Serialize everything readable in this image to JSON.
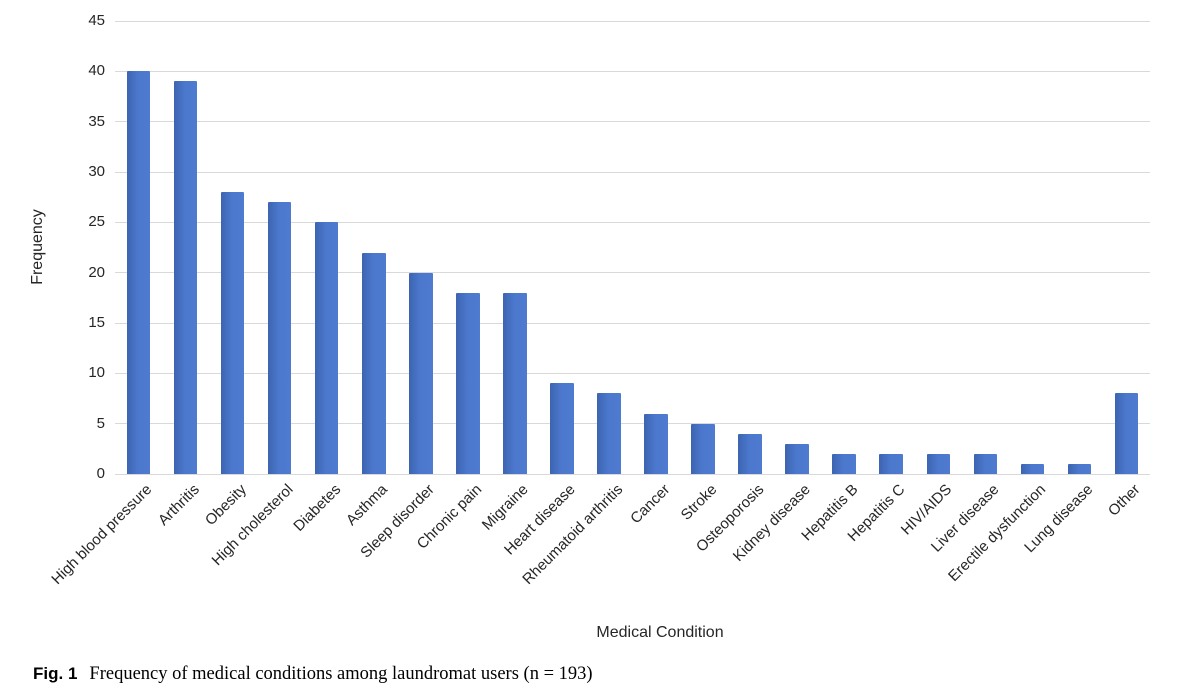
{
  "figure": {
    "fig_label": "Fig. 1",
    "caption": "Frequency of medical conditions among laundromat users (n = 193)"
  },
  "chart_data": {
    "type": "bar",
    "title": "",
    "xlabel": "Medical Condition",
    "ylabel": "Frequency",
    "ylim": [
      0,
      45
    ],
    "ytick_step": 5,
    "grid": true,
    "legend": "none",
    "bar_color": "#4472c4",
    "gridline_color": "#d9d9d9",
    "categories": [
      "High blood pressure",
      "Arthritis",
      "Obesity",
      "High cholesterol",
      "Diabetes",
      "Asthma",
      "Sleep disorder",
      "Chronic pain",
      "Migraine",
      "Heart disease",
      "Rheumatoid arthritis",
      "Cancer",
      "Stroke",
      "Osteoporosis",
      "Kidney disease",
      "Hepatitis B",
      "Hepatitis C",
      "HIV/AIDS",
      "Liver disease",
      "Erectile dysfunction",
      "Lung disease",
      "Other"
    ],
    "values": [
      40,
      39,
      28,
      27,
      25,
      22,
      20,
      18,
      18,
      9,
      8,
      6,
      5,
      4,
      3,
      2,
      2,
      2,
      2,
      1,
      1,
      8
    ]
  }
}
